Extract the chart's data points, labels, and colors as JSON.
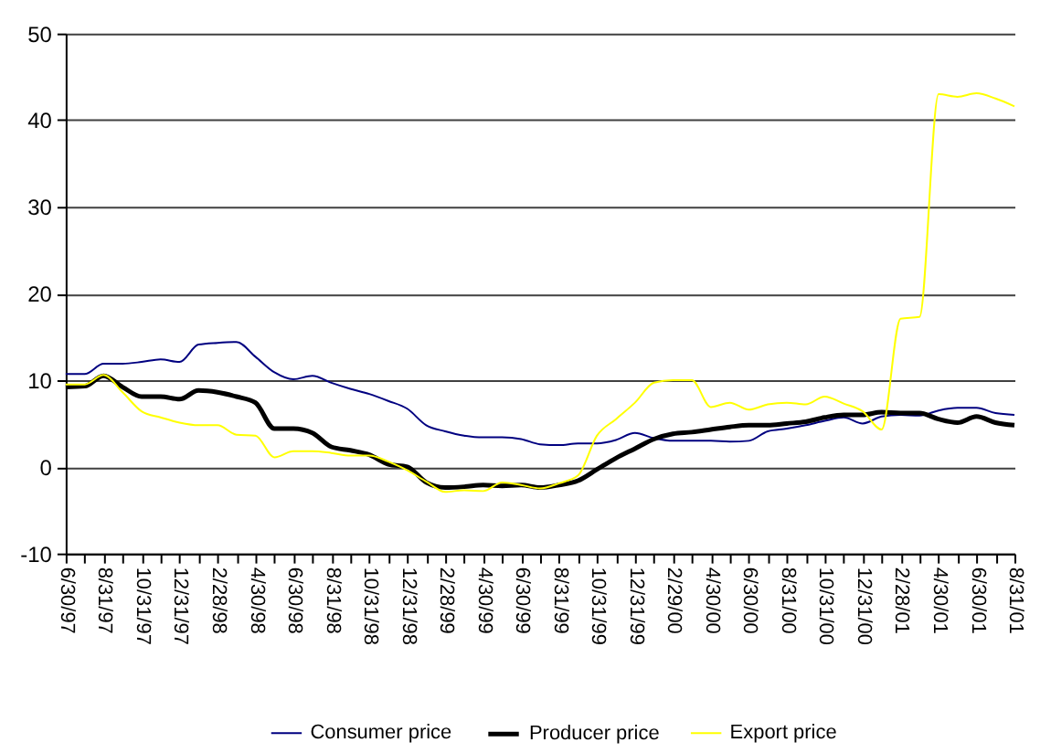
{
  "chart_data": {
    "type": "line",
    "categories": [
      "6/30/97",
      null,
      "8/31/97",
      null,
      "10/31/97",
      null,
      "12/31/97",
      null,
      "2/28/98",
      null,
      "4/30/98",
      null,
      "6/30/98",
      null,
      "8/31/98",
      null,
      "10/31/98",
      null,
      "12/31/98",
      null,
      "2/28/99",
      null,
      "4/30/99",
      null,
      "6/30/99",
      null,
      "8/31/99",
      null,
      "10/31/99",
      null,
      "12/31/99",
      null,
      "2/29/00",
      null,
      "4/30/00",
      null,
      "6/30/00",
      null,
      "8/31/00",
      null,
      "10/31/00",
      null,
      "12/31/00",
      null,
      "2/28/01",
      null,
      "4/30/01",
      null,
      "6/30/01",
      null,
      "8/31/01"
    ],
    "series": [
      {
        "name": "Consumer price",
        "color": "#000080",
        "values": [
          10.7,
          10.7,
          11.9,
          11.9,
          12.1,
          12.4,
          12.1,
          14.1,
          14.3,
          14.4,
          12.7,
          10.9,
          10.1,
          10.5,
          9.7,
          9.0,
          8.4,
          7.6,
          6.7,
          4.8,
          4.1,
          3.6,
          3.4,
          3.4,
          3.2,
          2.6,
          2.5,
          2.7,
          2.7,
          3.1,
          3.9,
          3.3,
          3.0,
          3.0,
          3.0,
          2.9,
          3.0,
          4.1,
          4.4,
          4.8,
          5.3,
          5.7,
          5.0,
          5.8,
          6.0,
          5.9,
          6.5,
          6.8,
          6.8,
          6.2,
          6.0
        ]
      },
      {
        "name": "Producer price",
        "color": "#000000",
        "values": [
          9.2,
          9.3,
          10.5,
          9.2,
          8.1,
          8.1,
          7.8,
          8.8,
          8.6,
          8.1,
          7.4,
          4.4,
          4.4,
          3.9,
          2.3,
          1.9,
          1.4,
          0.3,
          0.0,
          -1.8,
          -2.4,
          -2.3,
          -2.1,
          -2.2,
          -2.1,
          -2.4,
          -2.1,
          -1.6,
          -0.3,
          1.0,
          2.1,
          3.2,
          3.8,
          4.0,
          4.3,
          4.6,
          4.8,
          4.8,
          5.0,
          5.2,
          5.7,
          6.0,
          6.0,
          6.3,
          6.2,
          6.2,
          5.5,
          5.1,
          5.8,
          5.1,
          4.8
        ]
      },
      {
        "name": "Export price",
        "color": "#ffff00",
        "values": [
          9.5,
          9.5,
          10.6,
          8.6,
          6.4,
          5.7,
          5.1,
          4.8,
          4.8,
          3.7,
          3.6,
          1.1,
          1.8,
          1.8,
          1.6,
          1.3,
          1.3,
          0.6,
          -0.4,
          -1.7,
          -2.9,
          -2.7,
          -2.8,
          -1.8,
          -2.1,
          -2.5,
          -1.9,
          -1.0,
          3.6,
          5.5,
          7.4,
          9.7,
          10.0,
          10.0,
          6.9,
          7.4,
          6.6,
          7.2,
          7.4,
          7.2,
          8.1,
          7.3,
          6.4,
          4.3,
          17.1,
          17.3,
          43.0,
          42.7,
          43.1,
          42.5,
          41.6
        ]
      }
    ],
    "ylim": [
      -10,
      50
    ],
    "yticks": [
      -10,
      0,
      10,
      20,
      30,
      40,
      50
    ],
    "grid": "y",
    "legend": "bottom"
  }
}
